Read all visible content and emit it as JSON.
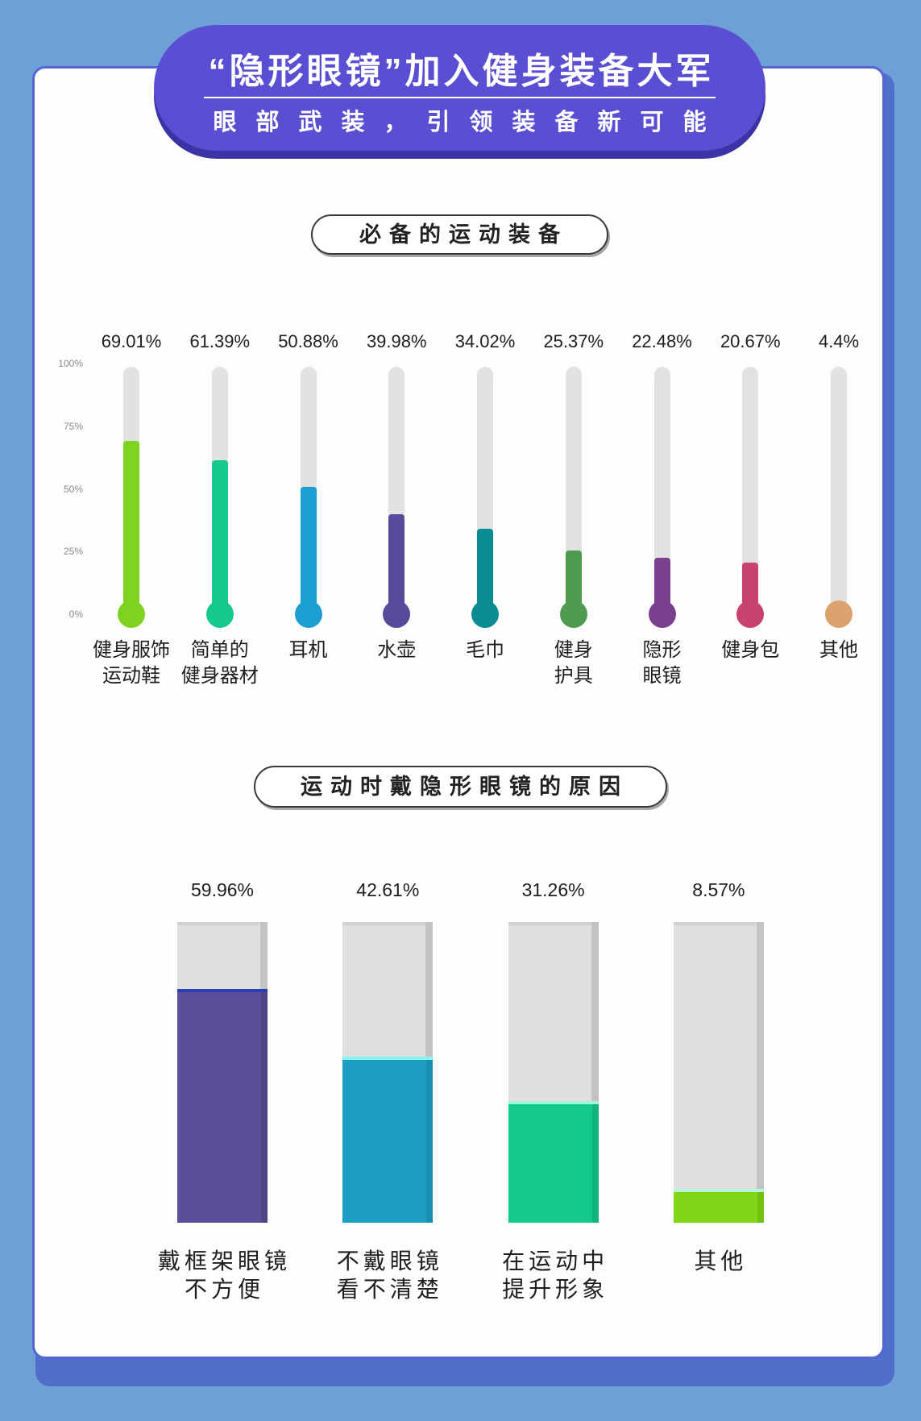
{
  "header": {
    "title": "“隐形眼镜”加入健身装备大军",
    "subtitle": "眼部武装，引领装备新可能"
  },
  "chart_data": [
    {
      "type": "bar",
      "title": "必备的运动装备",
      "categories": [
        "健身服饰\n运动鞋",
        "简单的\n健身器材",
        "耳机",
        "水壶",
        "毛巾",
        "健身\n护具",
        "隐形\n眼镜",
        "健身包",
        "其他"
      ],
      "values": [
        69.01,
        61.39,
        50.88,
        39.98,
        34.02,
        25.37,
        22.48,
        20.67,
        4.4
      ],
      "unit": "%",
      "ylim": [
        0,
        100
      ],
      "yticks": [
        100,
        75,
        50,
        25,
        0
      ],
      "colors": [
        "#7ed321",
        "#15c98f",
        "#1d9fd1",
        "#564a9b",
        "#0b8b93",
        "#4c9b4e",
        "#7a3f8f",
        "#c8426f",
        "#dba26e"
      ]
    },
    {
      "type": "bar",
      "title": "运动时戴隐形眼镜的原因",
      "categories": [
        "戴框架眼镜\n不方便",
        "不戴眼镜\n看不清楚",
        "在运动中\n提升形象",
        "其他"
      ],
      "values": [
        59.96,
        42.61,
        31.26,
        8.57
      ],
      "unit": "%",
      "ylim": [
        0,
        77
      ],
      "colors": [
        "#5a4f99",
        "#1d9fc4",
        "#13c98b",
        "#80d617"
      ],
      "highlight_colors": [
        "#2b3cb4",
        "#8cf3ee",
        "#a3f5df",
        "#b5f5d9"
      ]
    }
  ]
}
